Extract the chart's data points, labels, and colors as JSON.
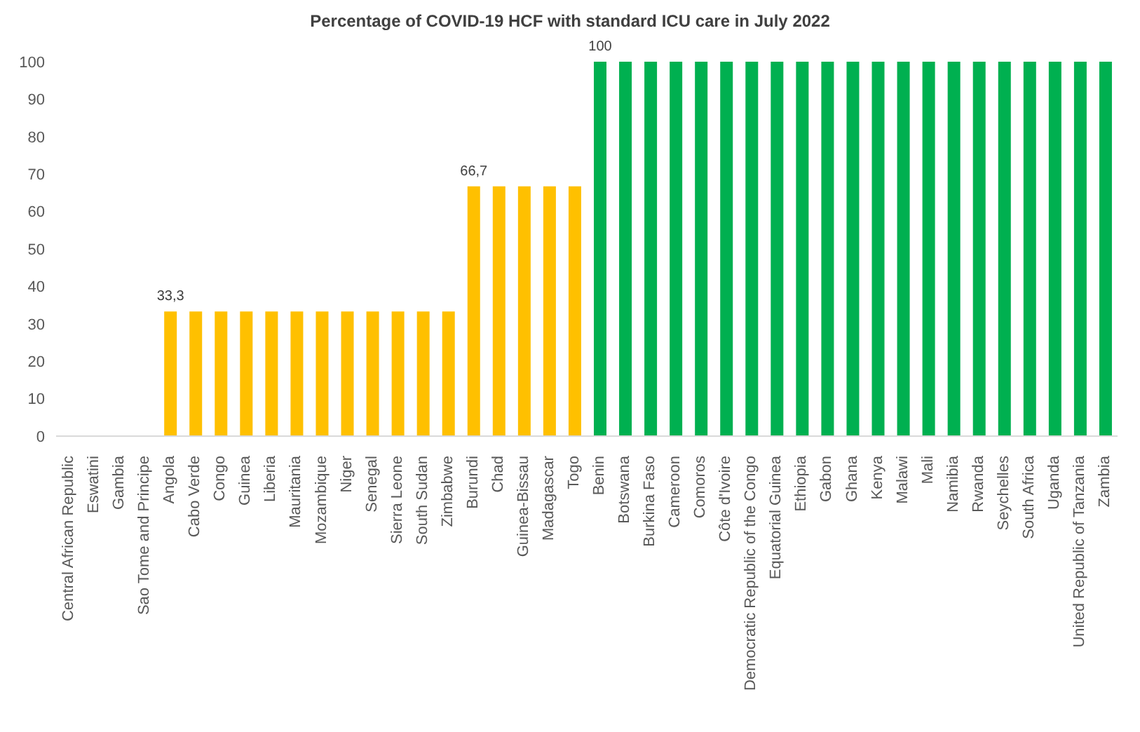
{
  "chart_data": {
    "type": "bar",
    "title": "Percentage of COVID-19 HCF with standard ICU care in July 2022",
    "categories": [
      "Central African Republic",
      "Eswatini",
      "Gambia",
      "Sao Tome and Principe",
      "Angola",
      "Cabo Verde",
      "Congo",
      "Guinea",
      "Liberia",
      "Mauritania",
      "Mozambique",
      "Niger",
      "Senegal",
      "Sierra Leone",
      "South Sudan",
      "Zimbabwe",
      "Burundi",
      "Chad",
      "Guinea-Bissau",
      "Madagascar",
      "Togo",
      "Benin",
      "Botswana",
      "Burkina Faso",
      "Cameroon",
      "Comoros",
      "Côte d'Ivoire",
      "Democratic Republic of the Congo",
      "Equatorial Guinea",
      "Ethiopia",
      "Gabon",
      "Ghana",
      "Kenya",
      "Malawi",
      "Mali",
      "Namibia",
      "Rwanda",
      "Seychelles",
      "South Africa",
      "Uganda",
      "United Republic of Tanzania",
      "Zambia"
    ],
    "values": [
      0,
      0,
      0,
      0,
      33.3,
      33.3,
      33.3,
      33.3,
      33.3,
      33.3,
      33.3,
      33.3,
      33.3,
      33.3,
      33.3,
      33.3,
      66.7,
      66.7,
      66.7,
      66.7,
      66.7,
      100,
      100,
      100,
      100,
      100,
      100,
      100,
      100,
      100,
      100,
      100,
      100,
      100,
      100,
      100,
      100,
      100,
      100,
      100,
      100,
      100
    ],
    "colors": [
      "#ffc000",
      "#ffc000",
      "#ffc000",
      "#ffc000",
      "#ffc000",
      "#ffc000",
      "#ffc000",
      "#ffc000",
      "#ffc000",
      "#ffc000",
      "#ffc000",
      "#ffc000",
      "#ffc000",
      "#ffc000",
      "#ffc000",
      "#ffc000",
      "#ffc000",
      "#ffc000",
      "#ffc000",
      "#ffc000",
      "#ffc000",
      "#00b050",
      "#00b050",
      "#00b050",
      "#00b050",
      "#00b050",
      "#00b050",
      "#00b050",
      "#00b050",
      "#00b050",
      "#00b050",
      "#00b050",
      "#00b050",
      "#00b050",
      "#00b050",
      "#00b050",
      "#00b050",
      "#00b050",
      "#00b050",
      "#00b050",
      "#00b050",
      "#00b050"
    ],
    "value_labels": [
      null,
      null,
      null,
      null,
      "33,3",
      null,
      null,
      null,
      null,
      null,
      null,
      null,
      null,
      null,
      null,
      null,
      "66,7",
      null,
      null,
      null,
      null,
      "100",
      null,
      null,
      null,
      null,
      null,
      null,
      null,
      null,
      null,
      null,
      null,
      null,
      null,
      null,
      null,
      null,
      null,
      null,
      null,
      null
    ],
    "ylim": [
      0,
      100
    ],
    "yticks": [
      0,
      10,
      20,
      30,
      40,
      50,
      60,
      70,
      80,
      90,
      100
    ],
    "grid": false,
    "legend": false
  }
}
